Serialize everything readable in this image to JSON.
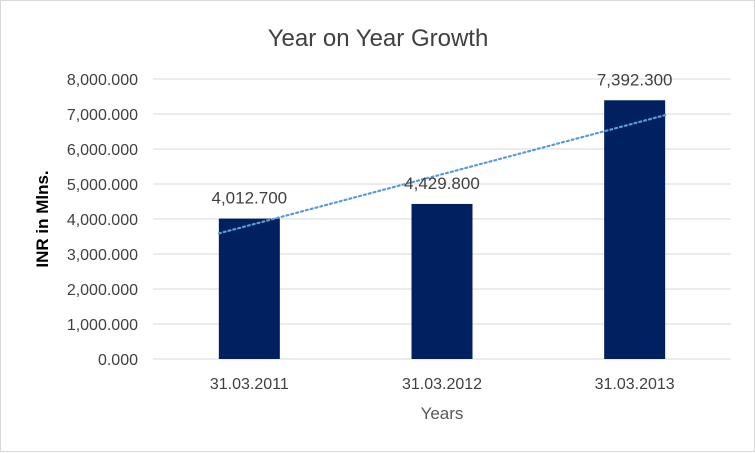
{
  "chart_data": {
    "type": "bar",
    "title": "Year on Year Growth",
    "xlabel": "Years",
    "ylabel": "INR in Mlns.",
    "categories": [
      "31.03.2011",
      "31.03.2012",
      "31.03.2013"
    ],
    "values": [
      4012.7,
      4429.8,
      7392.3
    ],
    "data_labels": [
      "4,012.700",
      "4,429.800",
      "7,392.300"
    ],
    "ylim": [
      0,
      8000
    ],
    "yticks": [
      0,
      1000,
      2000,
      3000,
      4000,
      5000,
      6000,
      7000,
      8000
    ],
    "ytick_labels": [
      "0.000",
      "1,000.000",
      "2,000.000",
      "3,000.000",
      "4,000.000",
      "5,000.000",
      "6,000.000",
      "7,000.000",
      "8,000.000"
    ],
    "grid": true,
    "legend": "none",
    "trendline": {
      "type": "linear",
      "style": "dotted"
    },
    "colors": {
      "bar": "#002060",
      "trendline": "#5b9bd5",
      "grid": "#d9d9d9",
      "text": "#404040"
    }
  }
}
